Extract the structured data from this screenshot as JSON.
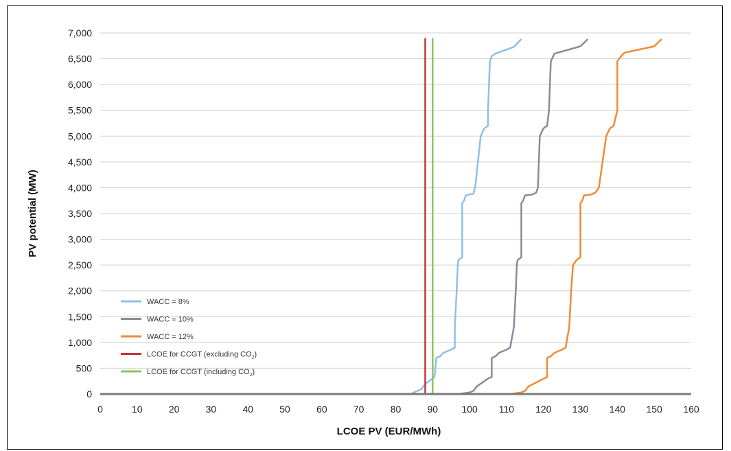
{
  "chart_data": {
    "type": "line",
    "xlabel": "LCOE PV (EUR/MWh)",
    "ylabel": "PV potential (MW)",
    "xlim": [
      0,
      160
    ],
    "ylim": [
      0,
      7000
    ],
    "x_ticks": [
      "0",
      "10",
      "20",
      "30",
      "40",
      "50",
      "60",
      "70",
      "80",
      "90",
      "100",
      "110",
      "120",
      "130",
      "140",
      "150",
      "160"
    ],
    "y_ticks": [
      "0",
      "500",
      "1,000",
      "1,500",
      "2,000",
      "2,500",
      "3,000",
      "3,500",
      "4,000",
      "4,500",
      "5,000",
      "5,500",
      "6,000",
      "6,500",
      "7,000"
    ],
    "grid": "horizontal",
    "legend_position": "bottom-left",
    "series": [
      {
        "name": "WACC = 8%",
        "color": "#8fbfe8",
        "points": [
          [
            0,
            0
          ],
          [
            84,
            0
          ],
          [
            85,
            30
          ],
          [
            87,
            100
          ],
          [
            88,
            200
          ],
          [
            90,
            300
          ],
          [
            90.5,
            330
          ],
          [
            91,
            700
          ],
          [
            92,
            730
          ],
          [
            93,
            800
          ],
          [
            95,
            860
          ],
          [
            96,
            900
          ],
          [
            96,
            1300
          ],
          [
            96.5,
            2000
          ],
          [
            96.8,
            2500
          ],
          [
            97,
            2600
          ],
          [
            98,
            2650
          ],
          [
            98,
            3700
          ],
          [
            98.5,
            3750
          ],
          [
            99,
            3850
          ],
          [
            100,
            3870
          ],
          [
            101,
            3880
          ],
          [
            101.5,
            4000
          ],
          [
            103,
            5000
          ],
          [
            104,
            5150
          ],
          [
            105,
            5200
          ],
          [
            105,
            5500
          ],
          [
            105.5,
            6450
          ],
          [
            106,
            6550
          ],
          [
            107,
            6600
          ],
          [
            112,
            6730
          ],
          [
            114,
            6880
          ]
        ]
      },
      {
        "name": "WACC = 10%",
        "color": "#8a8a9a",
        "points": [
          [
            0,
            0
          ],
          [
            97,
            0
          ],
          [
            100,
            30
          ],
          [
            101,
            60
          ],
          [
            102,
            150
          ],
          [
            105,
            300
          ],
          [
            106,
            330
          ],
          [
            106,
            700
          ],
          [
            107,
            730
          ],
          [
            108,
            800
          ],
          [
            110,
            860
          ],
          [
            111,
            900
          ],
          [
            112,
            1300
          ],
          [
            112.5,
            2000
          ],
          [
            112.8,
            2500
          ],
          [
            113,
            2600
          ],
          [
            114,
            2650
          ],
          [
            114,
            3700
          ],
          [
            114.5,
            3750
          ],
          [
            115,
            3850
          ],
          [
            117,
            3870
          ],
          [
            118,
            3900
          ],
          [
            118.5,
            4000
          ],
          [
            119,
            5000
          ],
          [
            120,
            5150
          ],
          [
            121,
            5200
          ],
          [
            121.5,
            5500
          ],
          [
            122,
            6450
          ],
          [
            123,
            6600
          ],
          [
            124,
            6620
          ],
          [
            130,
            6740
          ],
          [
            132,
            6880
          ]
        ]
      },
      {
        "name": "WACC = 12%",
        "color": "#f28a35",
        "points": [
          [
            0,
            0
          ],
          [
            111,
            0
          ],
          [
            114,
            30
          ],
          [
            115,
            60
          ],
          [
            116,
            150
          ],
          [
            119,
            260
          ],
          [
            121,
            330
          ],
          [
            121,
            700
          ],
          [
            122,
            730
          ],
          [
            123,
            800
          ],
          [
            125,
            860
          ],
          [
            126,
            900
          ],
          [
            127,
            1300
          ],
          [
            127.5,
            2000
          ],
          [
            128,
            2500
          ],
          [
            129,
            2600
          ],
          [
            130,
            2650
          ],
          [
            130,
            3700
          ],
          [
            130.5,
            3750
          ],
          [
            131,
            3850
          ],
          [
            133,
            3870
          ],
          [
            134,
            3900
          ],
          [
            135,
            4000
          ],
          [
            137,
            5000
          ],
          [
            138,
            5150
          ],
          [
            139,
            5200
          ],
          [
            140,
            5500
          ],
          [
            140,
            6450
          ],
          [
            141,
            6550
          ],
          [
            142,
            6620
          ],
          [
            150,
            6740
          ],
          [
            152,
            6880
          ]
        ]
      },
      {
        "name": "LCOE for CCGT (excluding CO",
        "name_sub": "2",
        "name_suffix": ")",
        "color": "#c8323a",
        "vertical_x": 88,
        "points": [
          [
            88,
            0
          ],
          [
            88,
            6900
          ]
        ]
      },
      {
        "name": "LCOE for CCGT (including CO",
        "name_sub": "2",
        "name_suffix": ")",
        "color": "#8cc45a",
        "vertical_x": 90,
        "points": [
          [
            90,
            0
          ],
          [
            90,
            6900
          ]
        ]
      }
    ]
  }
}
